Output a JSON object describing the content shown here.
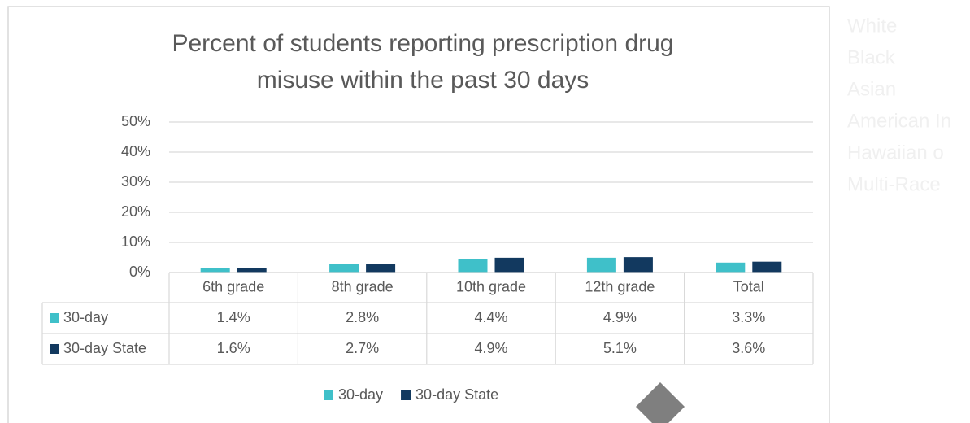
{
  "chart_data": {
    "type": "bar",
    "title": [
      "Percent of students reporting prescription drug",
      "misuse within the past 30 days"
    ],
    "categories": [
      "6th grade",
      "8th grade",
      "10th grade",
      "12th grade",
      "Total"
    ],
    "series": [
      {
        "name": "30-day",
        "color": "#3fc0c9",
        "values": [
          1.4,
          2.8,
          4.4,
          4.9,
          3.3
        ],
        "value_labels": [
          "1.4%",
          "2.8%",
          "4.4%",
          "4.9%",
          "3.3%"
        ]
      },
      {
        "name": "30-day State",
        "color": "#12395f",
        "values": [
          1.6,
          2.7,
          4.9,
          5.1,
          3.6
        ],
        "value_labels": [
          "1.6%",
          "2.7%",
          "4.9%",
          "5.1%",
          "3.6%"
        ]
      }
    ],
    "ylim": [
      0,
      50
    ],
    "yticks": [
      {
        "value": 0,
        "label": "0%"
      },
      {
        "value": 10,
        "label": "10%"
      },
      {
        "value": 20,
        "label": "20%"
      },
      {
        "value": 30,
        "label": "30%"
      },
      {
        "value": 40,
        "label": "40%"
      },
      {
        "value": 50,
        "label": "50%"
      }
    ],
    "grid": true,
    "legend": "bottom"
  },
  "side_labels": [
    "White",
    "Black",
    "Asian",
    "American In",
    "Hawaiian o",
    "Multi-Race"
  ]
}
